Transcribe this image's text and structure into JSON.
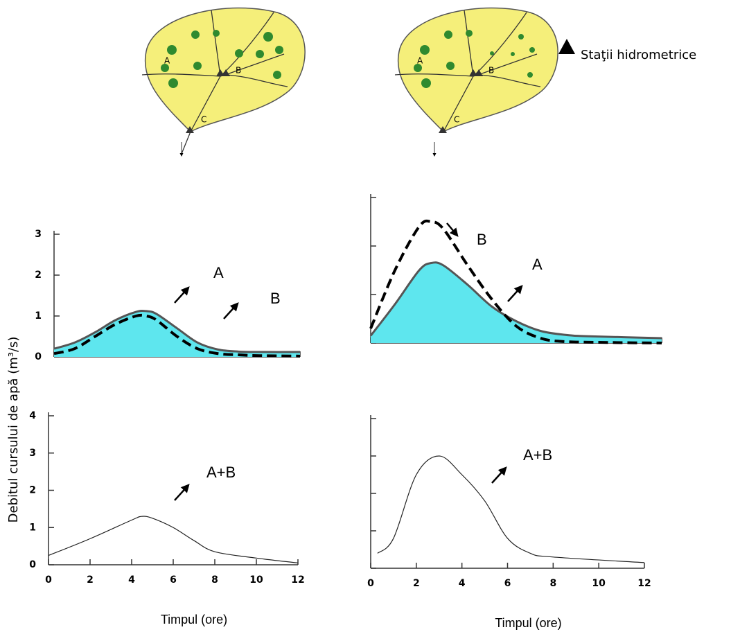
{
  "legend": "Staţii hidrometrice",
  "ylabel": "Debitul cursului de apă (m³/s)",
  "maps": [
    {
      "labels": [
        "A",
        "B",
        "C"
      ]
    },
    {
      "labels": [
        "A",
        "B",
        "C"
      ]
    }
  ],
  "chart_data": [
    {
      "type": "line",
      "xlim": [
        0,
        12
      ],
      "ylim": [
        0,
        3
      ],
      "xticks": [
        0,
        2,
        4,
        6,
        8,
        10,
        12
      ],
      "yticks": [
        0,
        1,
        2,
        3
      ],
      "xtick_labels": false,
      "ytick_labels": true,
      "series": [
        {
          "name": "A",
          "color": "#555555",
          "fill": "#5ee6ee",
          "dash": false,
          "x": [
            0,
            1,
            2,
            3,
            4,
            4.5,
            5,
            6,
            7,
            8,
            9,
            10,
            12
          ],
          "values": [
            0.2,
            0.35,
            0.6,
            0.9,
            1.1,
            1.12,
            1.05,
            0.7,
            0.35,
            0.18,
            0.13,
            0.12,
            0.12
          ]
        },
        {
          "name": "B",
          "color": "#000000",
          "dash": true,
          "x": [
            0,
            1,
            2,
            3,
            4,
            4.5,
            5,
            6,
            7,
            8,
            9,
            10,
            12
          ],
          "values": [
            0.08,
            0.2,
            0.5,
            0.8,
            1.0,
            1.0,
            0.9,
            0.5,
            0.2,
            0.08,
            0.05,
            0.03,
            0.02
          ]
        }
      ]
    },
    {
      "type": "line",
      "xlim": [
        0,
        12
      ],
      "ylim": [
        0,
        3
      ],
      "xticks": [
        0,
        2,
        4,
        6,
        8,
        10,
        12
      ],
      "yticks": [
        0,
        1,
        2,
        3
      ],
      "xtick_labels": false,
      "ytick_labels": false,
      "series": [
        {
          "name": "A",
          "color": "#555555",
          "fill": "#5ee6ee",
          "dash": false,
          "x": [
            0,
            1,
            2,
            2.5,
            3,
            4,
            5,
            6,
            7,
            8,
            9,
            12
          ],
          "values": [
            0.15,
            0.8,
            1.5,
            1.65,
            1.6,
            1.2,
            0.75,
            0.45,
            0.25,
            0.17,
            0.14,
            0.1
          ]
        },
        {
          "name": "B",
          "color": "#000000",
          "dash": true,
          "x": [
            0,
            1,
            2,
            2.5,
            3,
            4,
            5,
            6,
            7,
            8,
            10,
            12
          ],
          "values": [
            0.3,
            1.5,
            2.4,
            2.5,
            2.35,
            1.6,
            0.9,
            0.35,
            0.1,
            0.03,
            0.01,
            0
          ]
        }
      ]
    },
    {
      "type": "line",
      "xlim": [
        0,
        12
      ],
      "ylim": [
        0,
        4
      ],
      "xticks": [
        0,
        2,
        4,
        6,
        8,
        10,
        12
      ],
      "yticks": [
        0,
        1,
        2,
        3,
        4
      ],
      "xtick_labels": true,
      "ytick_labels": true,
      "xlabel": "Timpul (ore)",
      "series": [
        {
          "name": "A+B",
          "color": "#222222",
          "dash": false,
          "x": [
            0,
            2,
            4,
            4.5,
            5,
            6,
            7,
            8,
            10,
            12
          ],
          "values": [
            0.25,
            0.7,
            1.2,
            1.3,
            1.25,
            1.0,
            0.65,
            0.35,
            0.18,
            0.05
          ]
        }
      ]
    },
    {
      "type": "line",
      "xlim": [
        0,
        12
      ],
      "ylim": [
        0,
        4
      ],
      "xticks": [
        0,
        2,
        4,
        6,
        8,
        10,
        12
      ],
      "yticks": [
        0,
        1,
        2,
        3,
        4
      ],
      "xtick_labels": true,
      "ytick_labels": false,
      "xlabel": "Timpul (ore)",
      "series": [
        {
          "name": "A+B",
          "color": "#222222",
          "dash": false,
          "x": [
            0.3,
            1,
            2,
            3,
            4,
            5,
            6,
            7,
            8,
            12
          ],
          "values": [
            0.4,
            0.8,
            2.5,
            3.0,
            2.5,
            1.8,
            0.8,
            0.4,
            0.3,
            0.15
          ]
        }
      ]
    }
  ]
}
